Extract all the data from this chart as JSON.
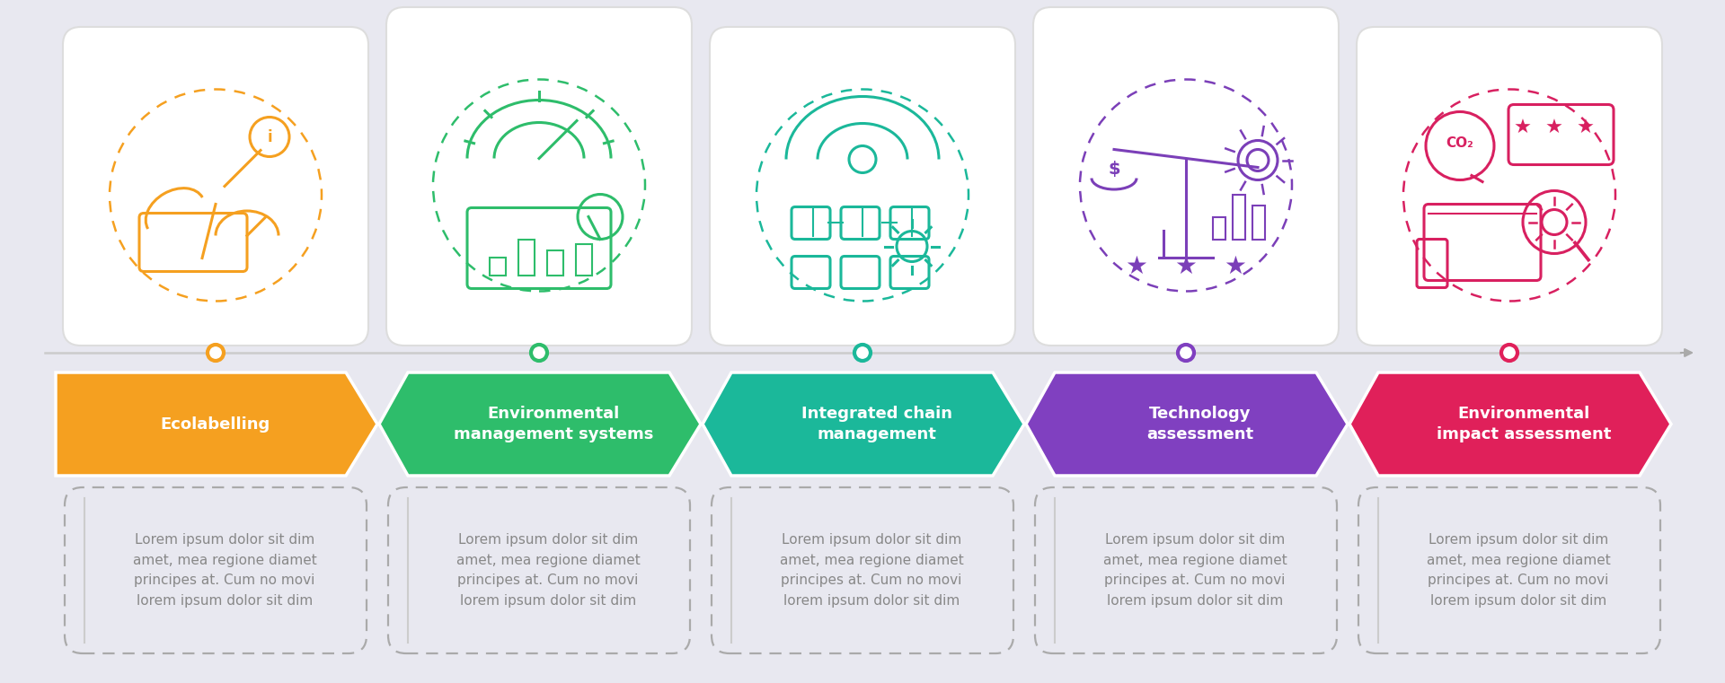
{
  "bg_color": "#e8e8f0",
  "steps": [
    {
      "title": "Ecolabelling",
      "color": "#f5a020",
      "dot_color": "#f5a020",
      "icon_color": "#f5a020"
    },
    {
      "title": "Environmental\nmanagement systems",
      "color": "#2ebd6b",
      "dot_color": "#2ebd6b",
      "icon_color": "#2ebd6b"
    },
    {
      "title": "Integrated chain\nmanagement",
      "color": "#1bb89a",
      "dot_color": "#1bb89a",
      "icon_color": "#1bb89a"
    },
    {
      "title": "Technology\nassessment",
      "color": "#8040c0",
      "dot_color": "#8040c0",
      "icon_color": "#7b3fb8"
    },
    {
      "title": "Environmental\nimpact assessment",
      "color": "#e0205a",
      "dot_color": "#e0205a",
      "icon_color": "#d82060"
    }
  ],
  "lorem_text": "Lorem ipsum dolor sit dim\namet, mea regione diamet\nprincipes at. Cum no movi\nlorem ipsum dolor sit dim",
  "dashed_border_color": "#aaaaaa",
  "separator_line_color": "#cccccc",
  "text_color": "#888888",
  "timeline_color": "#cccccc"
}
